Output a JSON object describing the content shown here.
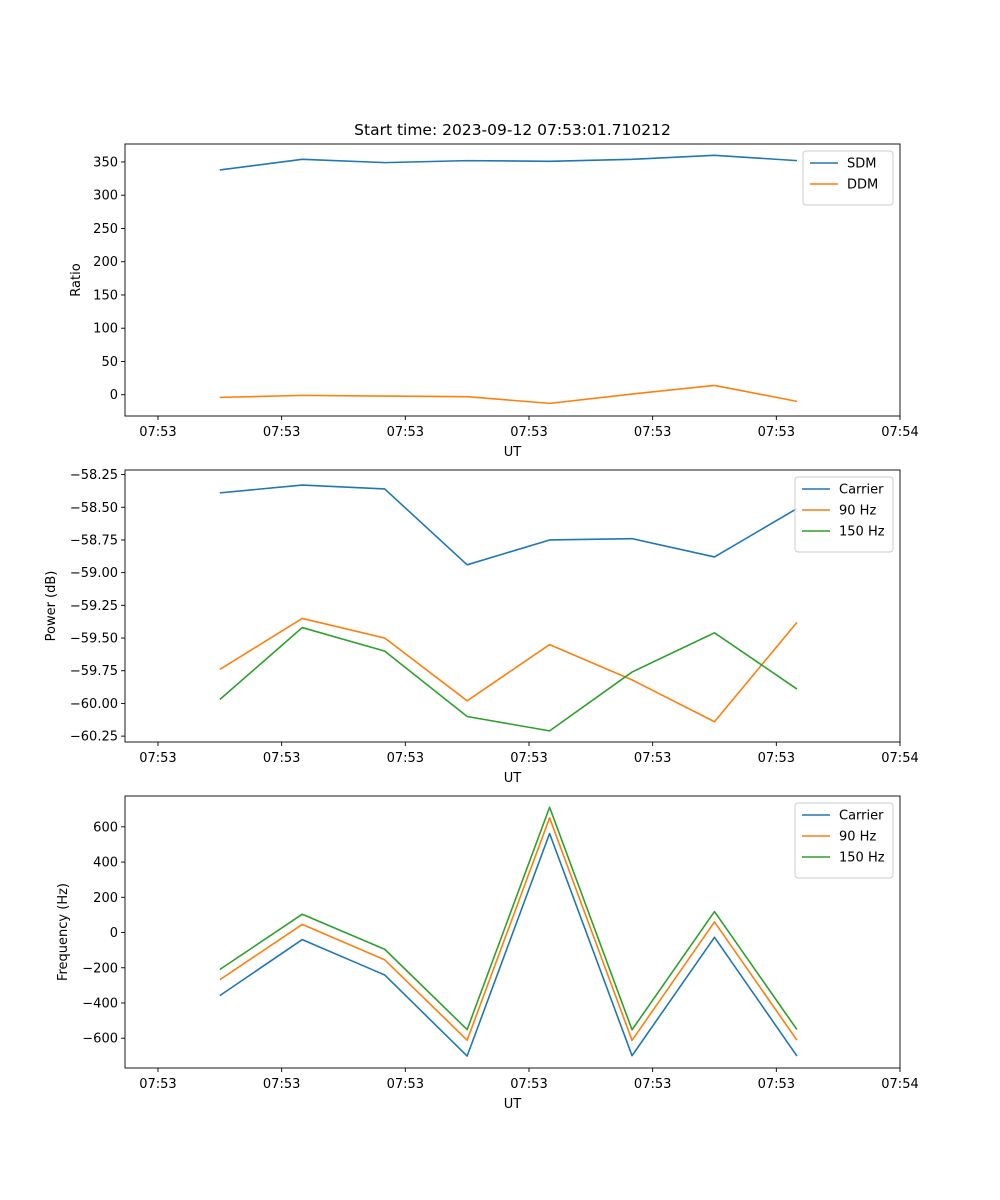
{
  "chart_data": [
    {
      "type": "line",
      "title": "Start time: 2023-09-12 07:53:01.710212",
      "xlabel": "UT",
      "ylabel": "Ratio",
      "xlim": [
        -0.4,
        9.0
      ],
      "ylim": [
        -32,
        377
      ],
      "xticks": [
        0,
        1.5,
        3,
        4.5,
        6,
        7.5,
        9
      ],
      "xtick_labels": [
        "07:53",
        "07:53",
        "07:53",
        "07:53",
        "07:53",
        "07:53",
        "07:54"
      ],
      "yticks": [
        0,
        50,
        100,
        150,
        200,
        250,
        300,
        350
      ],
      "ytick_labels": [
        "0",
        "50",
        "100",
        "150",
        "200",
        "250",
        "300",
        "350"
      ],
      "legend": "top-right",
      "x": [
        0.75,
        1.75,
        2.75,
        3.75,
        4.75,
        5.75,
        6.75,
        7.75
      ],
      "series": [
        {
          "name": "SDM",
          "color": "#1f77b4",
          "values": [
            338,
            354,
            349,
            352,
            351,
            354,
            360,
            352
          ]
        },
        {
          "name": "DDM",
          "color": "#ff7f0e",
          "values": [
            -4,
            -1,
            -2,
            -3,
            -13,
            1,
            14,
            -10
          ]
        }
      ]
    },
    {
      "type": "line",
      "title": "",
      "xlabel": "UT",
      "ylabel": "Power (dB)",
      "xlim": [
        -0.4,
        9.0
      ],
      "ylim": [
        -60.295,
        -58.215
      ],
      "xticks": [
        0,
        1.5,
        3,
        4.5,
        6,
        7.5,
        9
      ],
      "xtick_labels": [
        "07:53",
        "07:53",
        "07:53",
        "07:53",
        "07:53",
        "07:53",
        "07:54"
      ],
      "yticks": [
        -58.25,
        -58.5,
        -58.75,
        -59.0,
        -59.25,
        -59.5,
        -59.75,
        -60.0,
        -60.25
      ],
      "ytick_labels": [
        "−58.25",
        "−58.50",
        "−58.75",
        "−59.00",
        "−59.25",
        "−59.50",
        "−59.75",
        "−60.00",
        "−60.25"
      ],
      "legend": "top-right",
      "x": [
        0.75,
        1.75,
        2.75,
        3.75,
        4.75,
        5.75,
        6.75,
        7.75
      ],
      "series": [
        {
          "name": "Carrier",
          "color": "#1f77b4",
          "values": [
            -58.39,
            -58.33,
            -58.36,
            -58.94,
            -58.75,
            -58.74,
            -58.88,
            -58.51
          ]
        },
        {
          "name": "90 Hz",
          "color": "#ff7f0e",
          "values": [
            -59.74,
            -59.35,
            -59.5,
            -59.98,
            -59.55,
            -59.82,
            -60.14,
            -59.38
          ]
        },
        {
          "name": "150 Hz",
          "color": "#2ca02c",
          "values": [
            -59.97,
            -59.42,
            -59.6,
            -60.1,
            -60.21,
            -59.76,
            -59.46,
            -59.89
          ]
        }
      ]
    },
    {
      "type": "line",
      "title": "",
      "xlabel": "UT",
      "ylabel": "Frequency (Hz)",
      "xlim": [
        -0.4,
        9.0
      ],
      "ylim": [
        -769,
        775
      ],
      "xticks": [
        0,
        1.5,
        3,
        4.5,
        6,
        7.5,
        9
      ],
      "xtick_labels": [
        "07:53",
        "07:53",
        "07:53",
        "07:53",
        "07:53",
        "07:53",
        "07:54"
      ],
      "yticks": [
        600,
        400,
        200,
        0,
        -200,
        -400,
        -600
      ],
      "ytick_labels": [
        "600",
        "400",
        "200",
        "0",
        "−200",
        "−400",
        "−600"
      ],
      "legend": "top-right",
      "x": [
        0.75,
        1.75,
        2.75,
        3.75,
        4.75,
        5.75,
        6.75,
        7.75
      ],
      "series": [
        {
          "name": "Carrier",
          "color": "#1f77b4",
          "values": [
            -358,
            -40,
            -241,
            -701,
            562,
            -699,
            -27,
            -701
          ]
        },
        {
          "name": "90 Hz",
          "color": "#ff7f0e",
          "values": [
            -268,
            46,
            -155,
            -611,
            651,
            -612,
            60,
            -611
          ]
        },
        {
          "name": "150 Hz",
          "color": "#2ca02c",
          "values": [
            -210,
            104,
            -95,
            -551,
            711,
            -552,
            119,
            -551
          ]
        }
      ]
    }
  ]
}
